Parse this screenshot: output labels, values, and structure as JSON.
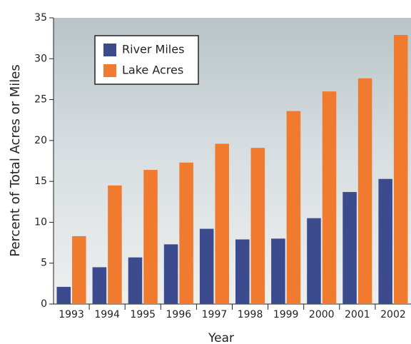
{
  "chart_data": {
    "type": "bar",
    "x_label": "Year",
    "y_label": "Percent of Total Acres or Miles",
    "categories": [
      "1993",
      "1994",
      "1995",
      "1996",
      "1997",
      "1998",
      "1999",
      "2000",
      "2001",
      "2002"
    ],
    "series": [
      {
        "name": "River Miles",
        "color": "#3c4a8e",
        "values": [
          2.1,
          4.5,
          5.7,
          7.3,
          9.2,
          7.9,
          8.0,
          10.5,
          13.7,
          15.3
        ]
      },
      {
        "name": "Lake Acres",
        "color": "#f07a2e",
        "values": [
          8.3,
          14.5,
          16.4,
          17.3,
          19.6,
          19.1,
          23.6,
          26.0,
          27.6,
          32.9
        ]
      }
    ],
    "ylim": [
      0,
      35
    ],
    "yticks": [
      0,
      5,
      10,
      15,
      20,
      25,
      30,
      35
    ],
    "legend": "upper left"
  }
}
